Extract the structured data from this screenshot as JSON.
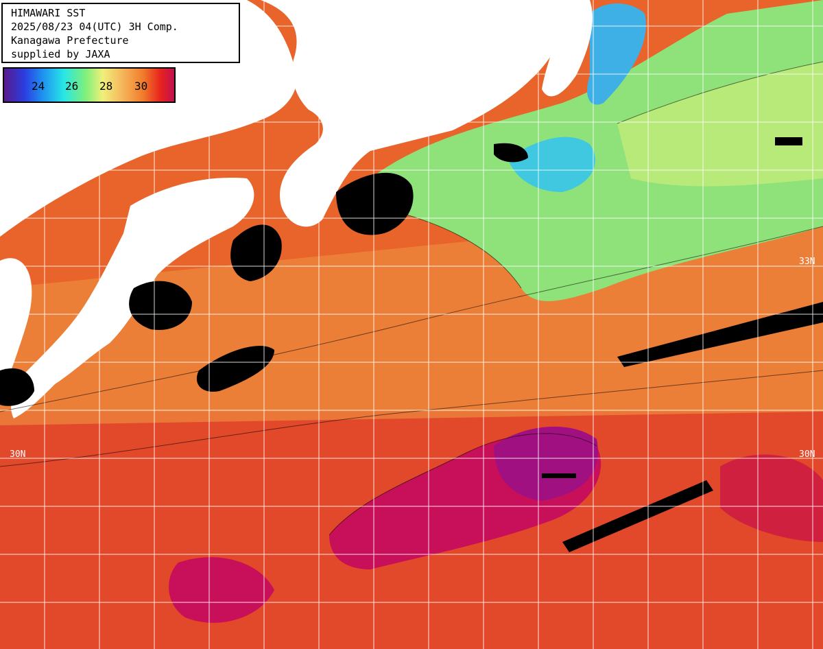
{
  "header": {
    "line1": "HIMAWARI SST",
    "line2": "2025/08/23 04(UTC) 3H Comp.",
    "line3": "Kanagawa Prefecture",
    "line4": "supplied by JAXA"
  },
  "legend": {
    "ticks": [
      "24",
      "26",
      "28",
      "30"
    ]
  },
  "lat_labels": {
    "n33_right": "33N",
    "n30_left": "30N",
    "n30_right": "30N"
  },
  "colors": {
    "ocean_warm": "#e8642a",
    "ocean_hot": "#c01060",
    "ocean_cool": "#7fe07a",
    "ocean_cold": "#28c8e6",
    "land": "#ffffff",
    "cloud": "#000000",
    "grid": "#ffffff"
  }
}
